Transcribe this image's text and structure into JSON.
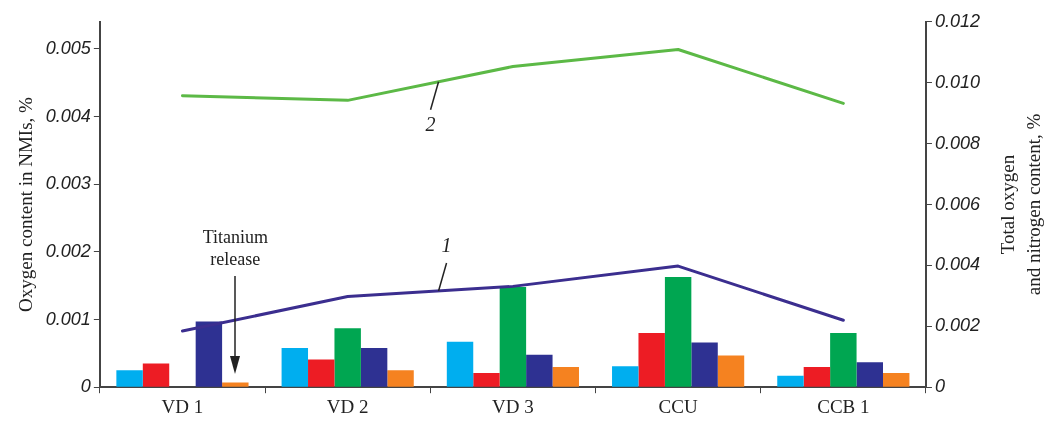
{
  "chart_data": {
    "type": "bar",
    "ylabel": "Oxygen content in NMIs, %",
    "y2label": "Total oxygen\nand nitrogen content, %",
    "categories": [
      "VD 1",
      "VD 2",
      "VD 3",
      "CCU",
      "CCB 1"
    ],
    "series": [
      {
        "color": "#00aeef",
        "values": [
          0.00025,
          0.00058,
          0.00067,
          0.00031,
          0.00017
        ]
      },
      {
        "color": "#ed1c24",
        "values": [
          0.00035,
          0.00041,
          0.00021,
          0.0008,
          0.0003
        ]
      },
      {
        "color": "#00a651",
        "values": [
          null,
          0.00087,
          0.00148,
          0.00163,
          0.0008
        ]
      },
      {
        "color": "#2e3192",
        "values": [
          0.00097,
          0.00058,
          0.00048,
          0.00066,
          0.00037
        ]
      },
      {
        "color": "#f58220",
        "values": [
          7e-05,
          0.00025,
          0.0003,
          0.00047,
          0.00021
        ]
      },
      {
        "type": "line",
        "name": "1",
        "color": "#3b2e8f",
        "values": [
          0.00083,
          0.00134,
          0.00149,
          0.00179,
          0.00099
        ]
      },
      {
        "type": "line",
        "name": "2",
        "color": "#5cb946",
        "axis": "y2",
        "values": [
          0.00957,
          0.00942,
          0.01053,
          0.01109,
          0.00932
        ]
      }
    ],
    "ylim": [
      0,
      0.0054
    ],
    "yticks": [
      0,
      0.001,
      0.002,
      0.003,
      0.004,
      0.005
    ],
    "y2lim": [
      0,
      0.012
    ],
    "y2ticks": [
      0,
      0.002,
      0.004,
      0.006,
      0.008,
      {
        "value": 0.01,
        "label": "0.010"
      },
      0.012
    ],
    "annotations": [
      "Titanium release"
    ],
    "grid": false,
    "legend": false,
    "marker": "none",
    "line_style": "solid"
  }
}
